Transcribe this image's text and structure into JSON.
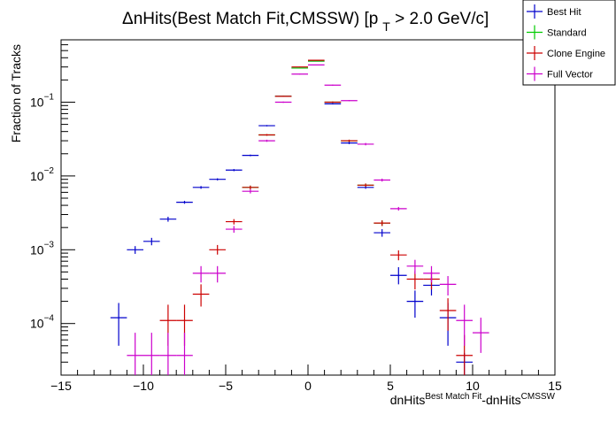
{
  "chart_data": {
    "type": "scatter",
    "title_main": "ΔnHits(Best Match Fit,CMSSW) [p",
    "title_sub": "T",
    "title_tail": " > 2.0 GeV/c]",
    "ylabel": "Fraction of Tracks",
    "xlabel_main": "dnHits",
    "xlabel_sup1": "Best Match Fit",
    "xlabel_mid": "-dnHits",
    "xlabel_sup2": "CMSSW",
    "xlim": [
      -15,
      15
    ],
    "ylim": [
      2e-05,
      0.7
    ],
    "y_scale": "log",
    "x_ticks": [
      "−15",
      "−10",
      "−5",
      "0",
      "5",
      "10",
      "15"
    ],
    "y_ticks": [
      {
        "base": "10",
        "exp": "−4",
        "value": 0.0001
      },
      {
        "base": "10",
        "exp": "−3",
        "value": 0.001
      },
      {
        "base": "10",
        "exp": "−2",
        "value": 0.01
      },
      {
        "base": "10",
        "exp": "−1",
        "value": 0.1
      }
    ],
    "legend_position": "top-right",
    "series": [
      {
        "name": "Best Hit",
        "color": "#0000cc",
        "points": [
          {
            "x": -11.5,
            "y": 0.00012,
            "ylo": 5e-05,
            "yhi": 0.00019
          },
          {
            "x": -10.5,
            "y": 0.001,
            "ylo": 0.00088,
            "yhi": 0.00112
          },
          {
            "x": -9.5,
            "y": 0.0013,
            "ylo": 0.00115,
            "yhi": 0.00145
          },
          {
            "x": -8.5,
            "y": 0.0026,
            "ylo": 0.0024,
            "yhi": 0.0028
          },
          {
            "x": -7.5,
            "y": 0.0044,
            "ylo": 0.0042,
            "yhi": 0.0046
          },
          {
            "x": -6.5,
            "y": 0.007,
            "ylo": 0.0067,
            "yhi": 0.0073
          },
          {
            "x": -5.5,
            "y": 0.009,
            "ylo": 0.0087,
            "yhi": 0.0093
          },
          {
            "x": -4.5,
            "y": 0.012,
            "ylo": 0.0116,
            "yhi": 0.0124
          },
          {
            "x": -3.5,
            "y": 0.019,
            "ylo": 0.0185,
            "yhi": 0.0195
          },
          {
            "x": -2.5,
            "y": 0.048,
            "ylo": 0.047,
            "yhi": 0.049
          },
          {
            "x": -1.5,
            "y": 0.12,
            "ylo": 0.118,
            "yhi": 0.122
          },
          {
            "x": -0.5,
            "y": 0.29,
            "ylo": 0.287,
            "yhi": 0.293
          },
          {
            "x": 0.5,
            "y": 0.36,
            "ylo": 0.357,
            "yhi": 0.363
          },
          {
            "x": 1.5,
            "y": 0.095,
            "ylo": 0.093,
            "yhi": 0.097
          },
          {
            "x": 2.5,
            "y": 0.028,
            "ylo": 0.027,
            "yhi": 0.029
          },
          {
            "x": 3.5,
            "y": 0.007,
            "ylo": 0.0067,
            "yhi": 0.0073
          },
          {
            "x": 4.5,
            "y": 0.0017,
            "ylo": 0.0015,
            "yhi": 0.0019
          },
          {
            "x": 5.5,
            "y": 0.00045,
            "ylo": 0.00034,
            "yhi": 0.00058
          },
          {
            "x": 6.5,
            "y": 0.0002,
            "ylo": 0.00012,
            "yhi": 0.00028
          },
          {
            "x": 7.5,
            "y": 0.00033,
            "ylo": 0.00024,
            "yhi": 0.00043
          },
          {
            "x": 8.5,
            "y": 0.00012,
            "ylo": 5e-05,
            "yhi": 0.00019
          },
          {
            "x": 9.5,
            "y": 3e-05,
            "ylo": 2e-05,
            "yhi": 4e-05
          }
        ]
      },
      {
        "name": "Standard",
        "color": "#00cc00",
        "points": [
          {
            "x": -3.5,
            "y": 0.007,
            "ylo": 0.0066,
            "yhi": 0.0074
          },
          {
            "x": -2.5,
            "y": 0.036,
            "ylo": 0.035,
            "yhi": 0.037
          },
          {
            "x": -1.5,
            "y": 0.12,
            "ylo": 0.118,
            "yhi": 0.122
          },
          {
            "x": -0.5,
            "y": 0.29,
            "ylo": 0.287,
            "yhi": 0.293
          },
          {
            "x": 0.5,
            "y": 0.36,
            "ylo": 0.357,
            "yhi": 0.363
          },
          {
            "x": 1.5,
            "y": 0.1,
            "ylo": 0.098,
            "yhi": 0.102
          },
          {
            "x": 2.5,
            "y": 0.03,
            "ylo": 0.029,
            "yhi": 0.031
          },
          {
            "x": 3.5,
            "y": 0.0075,
            "ylo": 0.0071,
            "yhi": 0.0079
          },
          {
            "x": 4.5,
            "y": 0.0023,
            "ylo": 0.0021,
            "yhi": 0.0025
          }
        ]
      },
      {
        "name": "Clone Engine",
        "color": "#cc0000",
        "points": [
          {
            "x": -8.5,
            "y": 0.00011,
            "ylo": 5e-05,
            "yhi": 0.00018
          },
          {
            "x": -7.5,
            "y": 0.00011,
            "ylo": 5e-05,
            "yhi": 0.00018
          },
          {
            "x": -6.5,
            "y": 0.00025,
            "ylo": 0.00017,
            "yhi": 0.00034
          },
          {
            "x": -5.5,
            "y": 0.001,
            "ylo": 0.00086,
            "yhi": 0.00116
          },
          {
            "x": -4.5,
            "y": 0.0024,
            "ylo": 0.0022,
            "yhi": 0.0026
          },
          {
            "x": -3.5,
            "y": 0.007,
            "ylo": 0.0066,
            "yhi": 0.0074
          },
          {
            "x": -2.5,
            "y": 0.036,
            "ylo": 0.035,
            "yhi": 0.037
          },
          {
            "x": -1.5,
            "y": 0.12,
            "ylo": 0.118,
            "yhi": 0.122
          },
          {
            "x": -0.5,
            "y": 0.3,
            "ylo": 0.297,
            "yhi": 0.303
          },
          {
            "x": 0.5,
            "y": 0.37,
            "ylo": 0.367,
            "yhi": 0.373
          },
          {
            "x": 1.5,
            "y": 0.1,
            "ylo": 0.098,
            "yhi": 0.102
          },
          {
            "x": 2.5,
            "y": 0.03,
            "ylo": 0.029,
            "yhi": 0.031
          },
          {
            "x": 3.5,
            "y": 0.0075,
            "ylo": 0.0071,
            "yhi": 0.0079
          },
          {
            "x": 4.5,
            "y": 0.0023,
            "ylo": 0.0021,
            "yhi": 0.0025
          },
          {
            "x": 5.5,
            "y": 0.00085,
            "ylo": 0.00072,
            "yhi": 0.00098
          },
          {
            "x": 6.5,
            "y": 0.0004,
            "ylo": 0.00029,
            "yhi": 0.00051
          },
          {
            "x": 7.5,
            "y": 0.0004,
            "ylo": 0.00029,
            "yhi": 0.00051
          },
          {
            "x": 8.5,
            "y": 0.00015,
            "ylo": 8e-05,
            "yhi": 0.00022
          },
          {
            "x": 9.5,
            "y": 3.7e-05,
            "ylo": 2e-05,
            "yhi": 7e-05
          }
        ]
      },
      {
        "name": "Full Vector",
        "color": "#cc00cc",
        "points": [
          {
            "x": -10.5,
            "y": 3.7e-05,
            "ylo": 2e-05,
            "yhi": 7.5e-05
          },
          {
            "x": -9.5,
            "y": 3.7e-05,
            "ylo": 2e-05,
            "yhi": 7.5e-05
          },
          {
            "x": -8.5,
            "y": 3.7e-05,
            "ylo": 2e-05,
            "yhi": 7.5e-05
          },
          {
            "x": -7.5,
            "y": 3.7e-05,
            "ylo": 2e-05,
            "yhi": 7.5e-05
          },
          {
            "x": -6.5,
            "y": 0.00048,
            "ylo": 0.00036,
            "yhi": 0.0006
          },
          {
            "x": -5.5,
            "y": 0.00048,
            "ylo": 0.00036,
            "yhi": 0.0006
          },
          {
            "x": -4.5,
            "y": 0.0019,
            "ylo": 0.0017,
            "yhi": 0.0021
          },
          {
            "x": -3.5,
            "y": 0.0062,
            "ylo": 0.0058,
            "yhi": 0.0066
          },
          {
            "x": -2.5,
            "y": 0.03,
            "ylo": 0.029,
            "yhi": 0.031
          },
          {
            "x": -1.5,
            "y": 0.1,
            "ylo": 0.098,
            "yhi": 0.102
          },
          {
            "x": -0.5,
            "y": 0.24,
            "ylo": 0.237,
            "yhi": 0.243
          },
          {
            "x": 0.5,
            "y": 0.32,
            "ylo": 0.317,
            "yhi": 0.323
          },
          {
            "x": 1.5,
            "y": 0.17,
            "ylo": 0.167,
            "yhi": 0.173
          },
          {
            "x": 2.5,
            "y": 0.105,
            "ylo": 0.103,
            "yhi": 0.107
          },
          {
            "x": 3.5,
            "y": 0.027,
            "ylo": 0.026,
            "yhi": 0.028
          },
          {
            "x": 4.5,
            "y": 0.0088,
            "ylo": 0.0084,
            "yhi": 0.0092
          },
          {
            "x": 5.5,
            "y": 0.0036,
            "ylo": 0.0034,
            "yhi": 0.0038
          },
          {
            "x": 6.5,
            "y": 0.0006,
            "ylo": 0.00047,
            "yhi": 0.00073
          },
          {
            "x": 7.5,
            "y": 0.00048,
            "ylo": 0.00036,
            "yhi": 0.0006
          },
          {
            "x": 8.5,
            "y": 0.00034,
            "ylo": 0.00024,
            "yhi": 0.00044
          },
          {
            "x": 9.5,
            "y": 0.00011,
            "ylo": 5e-05,
            "yhi": 0.00018
          },
          {
            "x": 10.5,
            "y": 7.5e-05,
            "ylo": 4e-05,
            "yhi": 0.00012
          }
        ]
      }
    ]
  }
}
